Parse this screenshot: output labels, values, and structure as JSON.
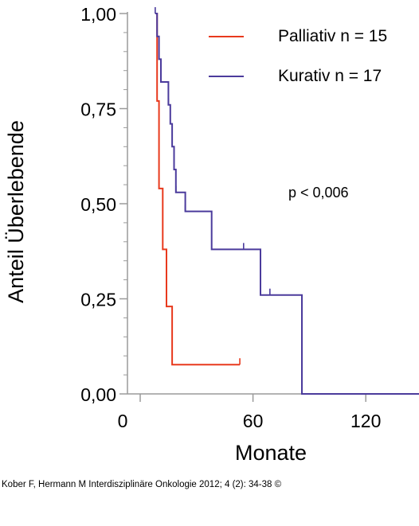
{
  "chart_data": {
    "type": "line",
    "step": true,
    "xlabel": "Monate",
    "ylabel": "Anteil Überlebende",
    "xlim": [
      0,
      150
    ],
    "ylim": [
      0,
      1
    ],
    "xticks": [
      0,
      60,
      120
    ],
    "x_tick_labels": [
      "0",
      "60",
      "120"
    ],
    "yticks": [
      0,
      0.25,
      0.5,
      0.75,
      1.0
    ],
    "y_tick_labels": [
      "0,00",
      "0,25",
      "0,50",
      "0,75",
      "1,00"
    ],
    "legend_position": "top-right",
    "annotation": "p < 0,006",
    "series": [
      {
        "name": "Palliativ n = 15",
        "color": "#e8391d",
        "points": [
          [
            8,
            1.0
          ],
          [
            9,
            0.77
          ],
          [
            10,
            0.54
          ],
          [
            12,
            0.38
          ],
          [
            14,
            0.23
          ],
          [
            17,
            0.077
          ],
          [
            53,
            0.077
          ]
        ],
        "censored": [
          [
            53,
            0.077
          ]
        ]
      },
      {
        "name": "Kurativ n = 17",
        "color": "#4b3b9c",
        "points": [
          [
            8,
            1.0
          ],
          [
            9,
            0.94
          ],
          [
            10,
            0.88
          ],
          [
            11,
            0.82
          ],
          [
            15,
            0.76
          ],
          [
            16,
            0.71
          ],
          [
            17,
            0.65
          ],
          [
            18,
            0.59
          ],
          [
            19,
            0.53
          ],
          [
            24,
            0.48
          ],
          [
            38,
            0.38
          ],
          [
            64,
            0.26
          ],
          [
            86,
            0.0
          ],
          [
            150,
            0.0
          ]
        ],
        "censored": [
          [
            8,
            1.0
          ],
          [
            9,
            0.94
          ],
          [
            15,
            0.76
          ],
          [
            19,
            0.53
          ],
          [
            24,
            0.48
          ],
          [
            55,
            0.38
          ],
          [
            69,
            0.26
          ]
        ]
      }
    ]
  },
  "caption": "Kober F, Hermann M Interdisziplinäre Onkologie 2012; 4 (2): 34-38 ©"
}
